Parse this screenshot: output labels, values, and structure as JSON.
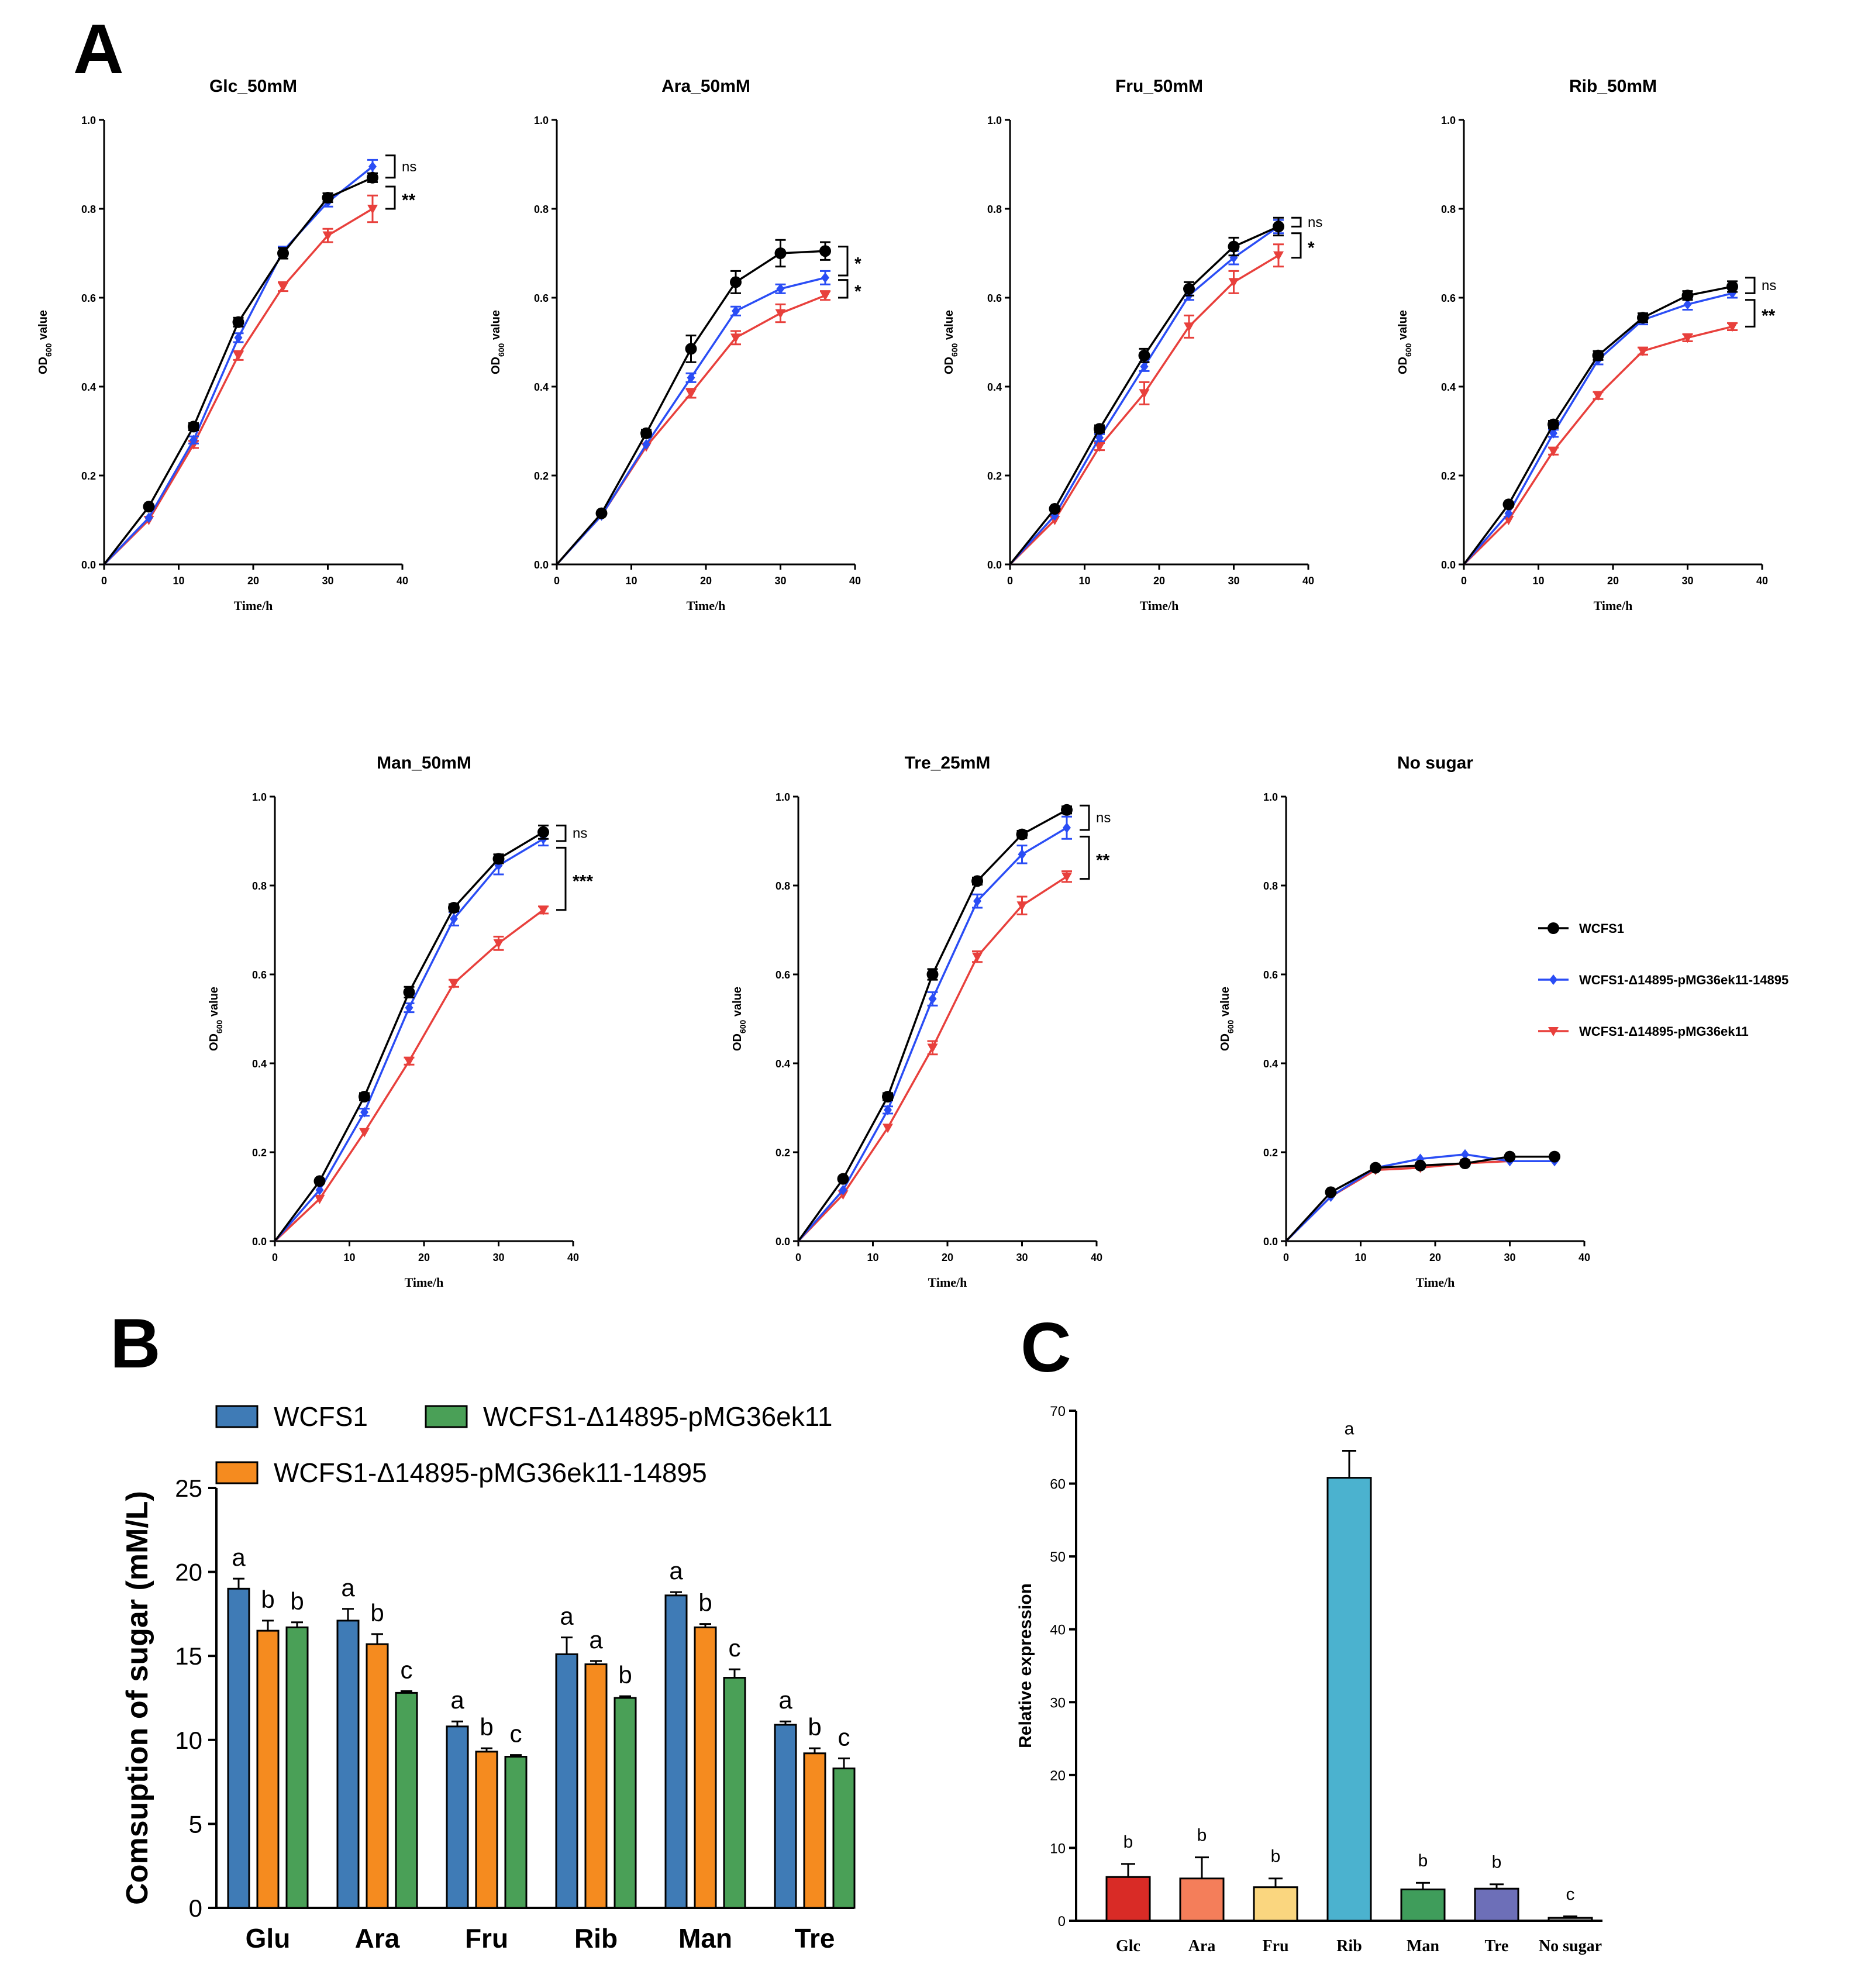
{
  "panel_labels": {
    "a": "A",
    "b": "B",
    "c": "C"
  },
  "chart_data": [
    {
      "id": "A",
      "type": "line",
      "xlabel": "Time/h",
      "ylabel_main": "OD",
      "ylabel_sub": "600",
      "ylabel_tail": " value",
      "xlim": [
        0,
        40
      ],
      "ylim": [
        0,
        1.0
      ],
      "xticks": [
        "0",
        "10",
        "20",
        "30",
        "40"
      ],
      "yticks": [
        "0.0",
        "0.2",
        "0.4",
        "0.6",
        "0.8",
        "1.0"
      ],
      "x": [
        0,
        6,
        12,
        18,
        24,
        30,
        36
      ],
      "legend": [
        "WCFS1",
        "WCFS1-Δ14895-pMG36ek11-14895",
        "WCFS1-Δ14895-pMG36ek11"
      ],
      "series_colors": [
        "#000000",
        "#2a4df5",
        "#e8403c"
      ],
      "subplots": [
        {
          "title": "Glc_50mM",
          "series": [
            {
              "name": "WCFS1",
              "values": [
                0,
                0.13,
                0.31,
                0.545,
                0.7,
                0.825,
                0.87
              ],
              "err": [
                0,
                0.005,
                0.008,
                0.01,
                0.012,
                0.01,
                0.01
              ]
            },
            {
              "name": "WCFS1-Δ14895-pMG36ek11-14895",
              "values": [
                0,
                0.105,
                0.28,
                0.51,
                0.705,
                0.815,
                0.895
              ],
              "err": [
                0,
                0.005,
                0.008,
                0.01,
                0.01,
                0.01,
                0.015
              ]
            },
            {
              "name": "WCFS1-Δ14895-pMG36ek11",
              "values": [
                0,
                0.1,
                0.27,
                0.47,
                0.625,
                0.74,
                0.8
              ],
              "err": [
                0,
                0.005,
                0.008,
                0.01,
                0.01,
                0.015,
                0.03
              ]
            }
          ],
          "annotations": [
            {
              "text": "ns",
              "y_top": 0.92,
              "y_bot": 0.87,
              "bold": false
            },
            {
              "text": "**",
              "y_top": 0.85,
              "y_bot": 0.8,
              "bold": true
            }
          ]
        },
        {
          "title": "Ara_50mM",
          "series": [
            {
              "name": "WCFS1",
              "values": [
                0,
                0.115,
                0.295,
                0.485,
                0.635,
                0.7,
                0.705
              ],
              "err": [
                0,
                0.005,
                0.008,
                0.03,
                0.025,
                0.03,
                0.02
              ]
            },
            {
              "name": "WCFS1-Δ14895-pMG36ek11-14895",
              "values": [
                0,
                0.11,
                0.27,
                0.42,
                0.57,
                0.62,
                0.645
              ],
              "err": [
                0,
                0.005,
                0.005,
                0.01,
                0.01,
                0.01,
                0.015
              ]
            },
            {
              "name": "WCFS1-Δ14895-pMG36ek11",
              "values": [
                0,
                0.11,
                0.265,
                0.385,
                0.51,
                0.565,
                0.605
              ],
              "err": [
                0,
                0.005,
                0.005,
                0.01,
                0.015,
                0.02,
                0.01
              ]
            }
          ],
          "annotations": [
            {
              "text": "*",
              "y_top": 0.715,
              "y_bot": 0.65,
              "bold": true
            },
            {
              "text": "*",
              "y_top": 0.64,
              "y_bot": 0.6,
              "bold": true
            }
          ]
        },
        {
          "title": "Fru_50mM",
          "series": [
            {
              "name": "WCFS1",
              "values": [
                0,
                0.125,
                0.305,
                0.47,
                0.62,
                0.715,
                0.76
              ],
              "err": [
                0,
                0.005,
                0.008,
                0.015,
                0.015,
                0.02,
                0.02
              ]
            },
            {
              "name": "WCFS1-Δ14895-pMG36ek11-14895",
              "values": [
                0,
                0.11,
                0.285,
                0.445,
                0.605,
                0.69,
                0.76
              ],
              "err": [
                0,
                0.005,
                0.008,
                0.01,
                0.01,
                0.015,
                0.015
              ]
            },
            {
              "name": "WCFS1-Δ14895-pMG36ek11",
              "values": [
                0,
                0.1,
                0.265,
                0.385,
                0.535,
                0.635,
                0.695
              ],
              "err": [
                0,
                0.005,
                0.008,
                0.025,
                0.025,
                0.025,
                0.025
              ]
            }
          ],
          "annotations": [
            {
              "text": "ns",
              "y_top": 0.78,
              "y_bot": 0.76,
              "bold": false
            },
            {
              "text": "*",
              "y_top": 0.745,
              "y_bot": 0.69,
              "bold": true
            }
          ]
        },
        {
          "title": "Rib_50mM",
          "series": [
            {
              "name": "WCFS1",
              "values": [
                0,
                0.135,
                0.315,
                0.47,
                0.555,
                0.605,
                0.625
              ],
              "err": [
                0,
                0.005,
                0.008,
                0.01,
                0.01,
                0.01,
                0.012
              ]
            },
            {
              "name": "WCFS1-Δ14895-pMG36ek11-14895",
              "values": [
                0,
                0.115,
                0.295,
                0.46,
                0.55,
                0.585,
                0.61
              ],
              "err": [
                0,
                0.005,
                0.008,
                0.01,
                0.01,
                0.012,
                0.01
              ]
            },
            {
              "name": "WCFS1-Δ14895-pMG36ek11",
              "values": [
                0,
                0.1,
                0.255,
                0.38,
                0.48,
                0.51,
                0.535
              ],
              "err": [
                0,
                0.005,
                0.008,
                0.008,
                0.008,
                0.008,
                0.008
              ]
            }
          ],
          "annotations": [
            {
              "text": "ns",
              "y_top": 0.645,
              "y_bot": 0.61,
              "bold": false
            },
            {
              "text": "**",
              "y_top": 0.595,
              "y_bot": 0.535,
              "bold": true
            }
          ]
        },
        {
          "title": "Man_50mM",
          "series": [
            {
              "name": "WCFS1",
              "values": [
                0,
                0.135,
                0.325,
                0.56,
                0.75,
                0.86,
                0.92
              ],
              "err": [
                0,
                0.005,
                0.008,
                0.012,
                0.008,
                0.01,
                0.015
              ]
            },
            {
              "name": "WCFS1-Δ14895-pMG36ek11-14895",
              "values": [
                0,
                0.115,
                0.29,
                0.525,
                0.725,
                0.845,
                0.905
              ],
              "err": [
                0,
                0.005,
                0.008,
                0.01,
                0.015,
                0.02,
                0.015
              ]
            },
            {
              "name": "WCFS1-Δ14895-pMG36ek11",
              "values": [
                0,
                0.095,
                0.245,
                0.405,
                0.58,
                0.67,
                0.745
              ],
              "err": [
                0,
                0.005,
                0.005,
                0.008,
                0.008,
                0.015,
                0.008
              ]
            }
          ],
          "annotations": [
            {
              "text": "ns",
              "y_top": 0.935,
              "y_bot": 0.9,
              "bold": false
            },
            {
              "text": "***",
              "y_top": 0.885,
              "y_bot": 0.745,
              "bold": true
            }
          ]
        },
        {
          "title": "Tre_25mM",
          "series": [
            {
              "name": "WCFS1",
              "values": [
                0,
                0.14,
                0.325,
                0.6,
                0.81,
                0.915,
                0.97
              ],
              "err": [
                0,
                0.005,
                0.008,
                0.012,
                0.008,
                0.008,
                0.008
              ]
            },
            {
              "name": "WCFS1-Δ14895-pMG36ek11-14895",
              "values": [
                0,
                0.115,
                0.295,
                0.545,
                0.765,
                0.87,
                0.93
              ],
              "err": [
                0,
                0.005,
                0.008,
                0.015,
                0.015,
                0.02,
                0.025
              ]
            },
            {
              "name": "WCFS1-Δ14895-pMG36ek11",
              "values": [
                0,
                0.105,
                0.255,
                0.435,
                0.64,
                0.755,
                0.82
              ],
              "err": [
                0,
                0.005,
                0.005,
                0.015,
                0.012,
                0.02,
                0.012
              ]
            }
          ],
          "annotations": [
            {
              "text": "ns",
              "y_top": 0.98,
              "y_bot": 0.925,
              "bold": false
            },
            {
              "text": "**",
              "y_top": 0.91,
              "y_bot": 0.815,
              "bold": true
            }
          ]
        },
        {
          "title": "No sugar",
          "series": [
            {
              "name": "WCFS1",
              "values": [
                0,
                0.11,
                0.165,
                0.17,
                0.175,
                0.19,
                0.19
              ],
              "err": [
                0,
                0.005,
                0.005,
                0.005,
                0.005,
                0.005,
                0.005
              ]
            },
            {
              "name": "WCFS1-Δ14895-pMG36ek11-14895",
              "values": [
                0,
                0.1,
                0.165,
                0.185,
                0.195,
                0.18,
                0.18
              ],
              "err": [
                0,
                0.005,
                0.005,
                0.005,
                0.005,
                0.005,
                0.005
              ]
            },
            {
              "name": "WCFS1-Δ14895-pMG36ek11",
              "values": [
                0,
                0.1,
                0.16,
                0.165,
                0.175,
                0.18,
                0.18
              ],
              "err": [
                0,
                0.005,
                0.005,
                0.005,
                0.005,
                0.005,
                0.005
              ]
            }
          ],
          "annotations": []
        }
      ]
    },
    {
      "id": "B",
      "type": "bar",
      "ylabel": "Comsuption of sugar (mM/L)",
      "ylim": [
        0,
        25
      ],
      "yticks": [
        "0",
        "5",
        "10",
        "15",
        "20",
        "25"
      ],
      "categories": [
        "Glu",
        "Ara",
        "Fru",
        "Rib",
        "Man",
        "Tre"
      ],
      "series": [
        {
          "name": "WCFS1",
          "color": "#3f7bb6",
          "values": [
            19.0,
            17.1,
            10.8,
            15.1,
            18.6,
            10.9
          ],
          "err": [
            0.6,
            0.7,
            0.3,
            1.0,
            0.2,
            0.2
          ],
          "letters": [
            "a",
            "a",
            "a",
            "a",
            "a",
            "a"
          ]
        },
        {
          "name": "WCFS1-Δ14895-pMG36ek11-14895",
          "color": "#f58b1f",
          "values": [
            16.5,
            15.7,
            9.3,
            14.5,
            16.7,
            9.2
          ],
          "err": [
            0.6,
            0.6,
            0.2,
            0.2,
            0.2,
            0.3
          ],
          "letters": [
            "b",
            "b",
            "b",
            "a",
            "b",
            "b"
          ]
        },
        {
          "name": "WCFS1-Δ14895-pMG36ek11",
          "color": "#4aa057",
          "values": [
            16.7,
            12.8,
            9.0,
            12.5,
            13.7,
            8.3
          ],
          "err": [
            0.3,
            0.1,
            0.1,
            0.1,
            0.5,
            0.6
          ],
          "letters": [
            "b",
            "c",
            "c",
            "b",
            "c",
            "c"
          ]
        }
      ],
      "legend": [
        {
          "name": "WCFS1",
          "color": "#3f7bb6"
        },
        {
          "name": "WCFS1-Δ14895-pMG36ek11",
          "color": "#4aa057"
        },
        {
          "name": "WCFS1-Δ14895-pMG36ek11-14895",
          "color": "#f58b1f"
        }
      ]
    },
    {
      "id": "C",
      "type": "bar",
      "ylabel": "Relative expression",
      "ylim": [
        0,
        70
      ],
      "yticks": [
        "0",
        "10",
        "20",
        "30",
        "40",
        "50",
        "60",
        "70"
      ],
      "categories": [
        "Glc",
        "Ara",
        "Fru",
        "Rib",
        "Man",
        "Tre",
        "No sugar"
      ],
      "values": [
        6.0,
        5.8,
        4.6,
        60.8,
        4.3,
        4.4,
        0.4
      ],
      "err": [
        1.8,
        2.9,
        1.2,
        3.7,
        0.9,
        0.6,
        0.2
      ],
      "letters": [
        "b",
        "b",
        "b",
        "a",
        "b",
        "b",
        "c"
      ],
      "colors": [
        "#d92b26",
        "#f47e5a",
        "#fad67f",
        "#4bb2cf",
        "#3f9d5b",
        "#6d6fb8",
        "#888888"
      ]
    }
  ]
}
